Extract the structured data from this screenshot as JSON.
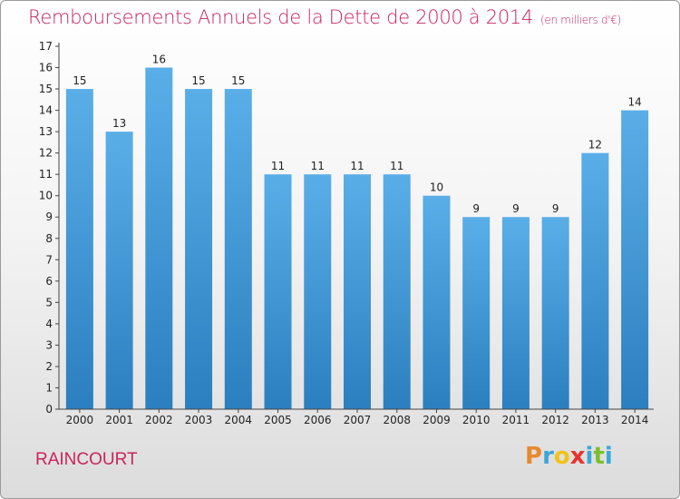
{
  "header": {
    "title": "Remboursements Annuels de la Dette de 2000 à 2014",
    "unit": "(en milliers d'€)"
  },
  "footer": {
    "place": "RAINCOURT",
    "logo_letters": [
      "P",
      "r",
      "o",
      "x",
      "i",
      "t",
      "i"
    ],
    "logo_colors": [
      "#e8892d",
      "#3aa7d9",
      "#f2c318",
      "#e8332d",
      "#3aa7d9",
      "#7cbf2e",
      "#3aa7d9"
    ]
  },
  "colors": {
    "bar_top": "#5aaee8",
    "bar_bottom": "#2b7fbf",
    "axis": "#444444",
    "grid": "#bbbbbb"
  },
  "chart_data": {
    "type": "bar",
    "categories": [
      "2000",
      "2001",
      "2002",
      "2003",
      "2004",
      "2005",
      "2006",
      "2007",
      "2008",
      "2009",
      "2010",
      "2011",
      "2012",
      "2013",
      "2014"
    ],
    "values": [
      15,
      13,
      16,
      15,
      15,
      11,
      11,
      11,
      11,
      10,
      9,
      9,
      9,
      12,
      14
    ],
    "title": "Remboursements Annuels de la Dette de 2000 à 2014",
    "xlabel": "",
    "ylabel": "",
    "ylim": [
      0,
      17
    ],
    "yticks": [
      0,
      1,
      2,
      3,
      4,
      5,
      6,
      7,
      8,
      9,
      10,
      11,
      12,
      13,
      14,
      15,
      16,
      17
    ],
    "grid": false,
    "legend": "none"
  }
}
